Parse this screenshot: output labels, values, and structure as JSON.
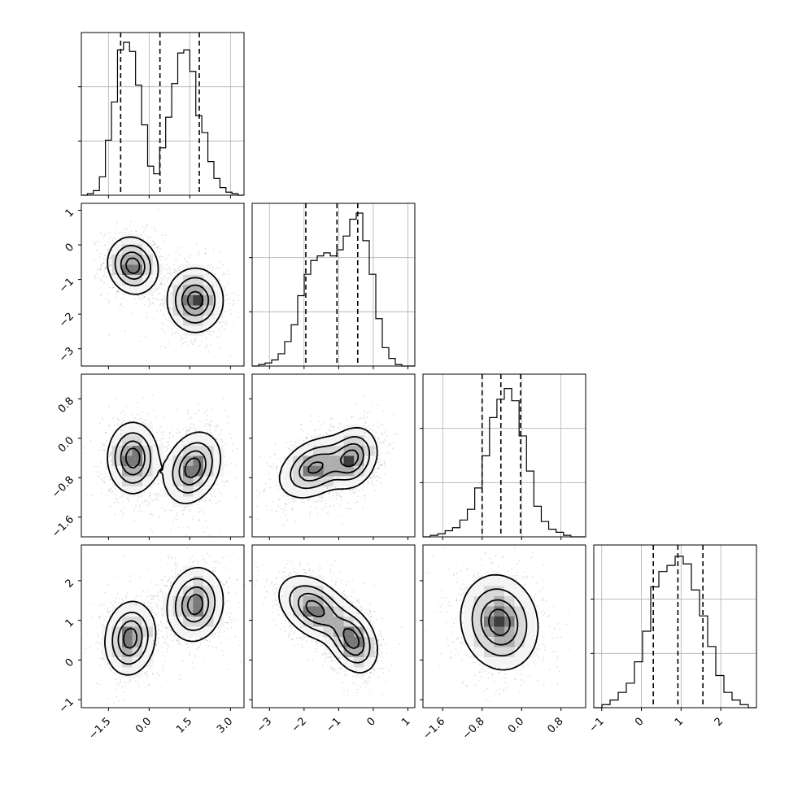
{
  "chart_data": {
    "type": "corner",
    "params": [
      {
        "range": [
          -2.5,
          3.5
        ],
        "ticks": [
          {
            "value": -1.5,
            "label": "−1.5"
          },
          {
            "value": 0.0,
            "label": "0.0"
          },
          {
            "value": 1.5,
            "label": "1.5"
          },
          {
            "value": 3.0,
            "label": "3.0"
          }
        ],
        "quantiles": [
          -1.05,
          0.4,
          1.85
        ],
        "hist_max": 1.0,
        "hist": [
          0.0,
          0.01,
          0.03,
          0.12,
          0.36,
          0.61,
          0.95,
          1.0,
          0.94,
          0.72,
          0.46,
          0.19,
          0.14,
          0.31,
          0.51,
          0.73,
          0.93,
          0.95,
          0.81,
          0.52,
          0.41,
          0.22,
          0.11,
          0.05,
          0.02,
          0.01,
          0.0
        ]
      },
      {
        "range": [
          -3.5,
          1.2
        ],
        "ticks": [
          {
            "value": -3,
            "label": "−3"
          },
          {
            "value": -2,
            "label": "−2"
          },
          {
            "value": -1,
            "label": "−1"
          },
          {
            "value": 0,
            "label": "0"
          },
          {
            "value": 1,
            "label": "1"
          }
        ],
        "quantiles": [
          -1.95,
          -1.05,
          -0.45
        ],
        "hist_max": 1.0,
        "hist": [
          0.0,
          0.01,
          0.02,
          0.04,
          0.08,
          0.16,
          0.27,
          0.46,
          0.6,
          0.69,
          0.72,
          0.74,
          0.72,
          0.76,
          0.85,
          0.96,
          1.0,
          0.82,
          0.6,
          0.31,
          0.12,
          0.05,
          0.01,
          0.0,
          0.0
        ]
      },
      {
        "range": [
          -2.0,
          1.3
        ],
        "ticks": [
          {
            "value": -1.6,
            "label": "−1.6"
          },
          {
            "value": -0.8,
            "label": "−0.8"
          },
          {
            "value": 0.0,
            "label": "0.0"
          },
          {
            "value": 0.8,
            "label": "0.8"
          }
        ],
        "quantiles": [
          -0.8,
          -0.42,
          -0.02
        ],
        "hist_max": 1.0,
        "hist": [
          0.0,
          0.01,
          0.02,
          0.04,
          0.06,
          0.11,
          0.18,
          0.32,
          0.53,
          0.78,
          0.9,
          0.97,
          0.89,
          0.66,
          0.43,
          0.2,
          0.1,
          0.05,
          0.03,
          0.01,
          0.0,
          0.0
        ]
      },
      {
        "range": [
          -1.2,
          2.9
        ],
        "ticks": [
          {
            "value": -1,
            "label": "−1"
          },
          {
            "value": 0,
            "label": "0"
          },
          {
            "value": 1,
            "label": "1"
          },
          {
            "value": 2,
            "label": "2"
          }
        ],
        "quantiles": [
          0.3,
          0.92,
          1.55
        ],
        "hist_max": 1.0,
        "hist": [
          0.0,
          0.02,
          0.05,
          0.1,
          0.16,
          0.3,
          0.5,
          0.79,
          0.89,
          0.93,
          0.99,
          0.94,
          0.77,
          0.6,
          0.4,
          0.21,
          0.1,
          0.05,
          0.02,
          0.0
        ]
      }
    ],
    "pairs": [
      {
        "row": 1,
        "col": 0,
        "clusters": [
          {
            "mx": -0.6,
            "my": -0.6,
            "sx": 0.45,
            "sy": 0.4,
            "rho": -0.1,
            "w": 1.0
          },
          {
            "mx": 1.7,
            "my": -1.6,
            "sx": 0.5,
            "sy": 0.45,
            "rho": 0.0,
            "w": 1.0
          }
        ]
      },
      {
        "row": 2,
        "col": 0,
        "clusters": [
          {
            "mx": -0.6,
            "my": -0.4,
            "sx": 0.45,
            "sy": 0.35,
            "rho": 0.0,
            "w": 1.0
          },
          {
            "mx": 1.6,
            "my": -0.6,
            "sx": 0.5,
            "sy": 0.35,
            "rho": 0.25,
            "w": 1.0
          }
        ]
      },
      {
        "row": 2,
        "col": 1,
        "clusters": [
          {
            "mx": -1.7,
            "my": -0.6,
            "sx": 0.5,
            "sy": 0.3,
            "rho": 0.35,
            "w": 1.0
          },
          {
            "mx": -0.6,
            "my": -0.4,
            "sx": 0.35,
            "sy": 0.3,
            "rho": 0.2,
            "w": 1.0
          }
        ]
      },
      {
        "row": 3,
        "col": 0,
        "clusters": [
          {
            "mx": -0.7,
            "my": 0.55,
            "sx": 0.45,
            "sy": 0.45,
            "rho": 0.1,
            "w": 1.0
          },
          {
            "mx": 1.7,
            "my": 1.4,
            "sx": 0.5,
            "sy": 0.45,
            "rho": 0.1,
            "w": 1.0
          }
        ]
      },
      {
        "row": 3,
        "col": 1,
        "clusters": [
          {
            "mx": -1.7,
            "my": 1.3,
            "sx": 0.5,
            "sy": 0.4,
            "rho": -0.4,
            "w": 1.0
          },
          {
            "mx": -0.6,
            "my": 0.5,
            "sx": 0.35,
            "sy": 0.4,
            "rho": -0.3,
            "w": 1.0
          }
        ]
      },
      {
        "row": 3,
        "col": 2,
        "clusters": [
          {
            "mx": -0.45,
            "my": 0.95,
            "sx": 0.38,
            "sy": 0.58,
            "rho": -0.1,
            "w": 1.0
          }
        ]
      }
    ]
  }
}
